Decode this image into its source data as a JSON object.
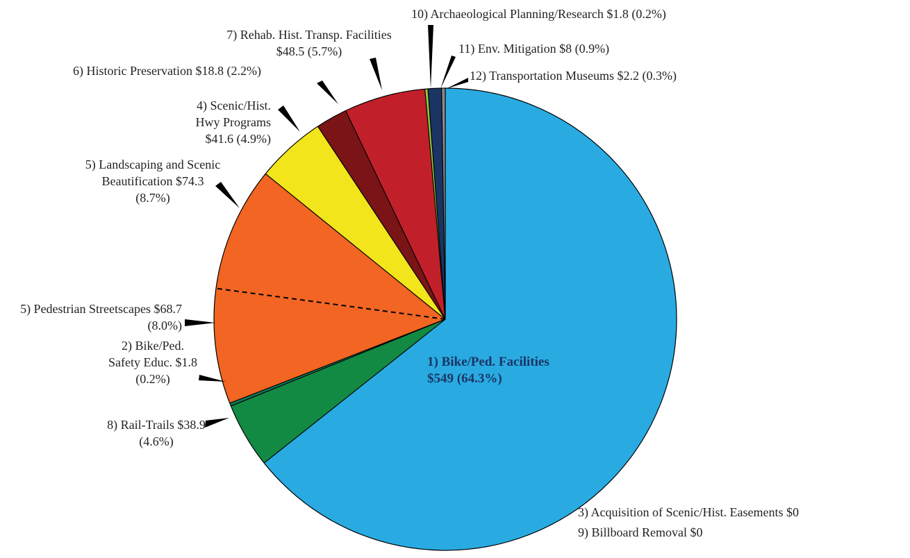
{
  "chart_data": {
    "type": "pie",
    "categories": [
      "1) Bike/Ped. Facilities",
      "8) Rail-Trails",
      "2) Bike/Ped. Safety Educ.",
      "5) Pedestrian Streetscapes",
      "5) Landscaping and Scenic Beautification",
      "4) Scenic/Hist. Hwy Programs",
      "6) Historic Preservation",
      "7) Rehab. Hist. Transp. Facilities",
      "10) Archaeological Planning/Research",
      "11) Env. Mitigation",
      "12) Transportation Museums",
      "3) Acquisition of Scenic/Hist. Easements",
      "9) Billboard Removal"
    ],
    "values": [
      549,
      38.9,
      1.8,
      68.7,
      74.3,
      41.6,
      18.8,
      48.5,
      1.8,
      8,
      2.2,
      0,
      0
    ],
    "value_labels": [
      "$549 (64.3%)",
      "$38.9 (4.6%)",
      "$1.8 (0.2%)",
      "$68.7 (8.0%)",
      "$74.3 (8.7%)",
      "$41.6 (4.9%)",
      "$18.8 (2.2%)",
      "$48.5 (5.7%)",
      "$1.8 (0.2%)",
      "$8 (0.9%)",
      "$2.2 (0.3%)",
      "$0",
      "$0"
    ],
    "colors": [
      "#29abe2",
      "#138a43",
      "#0f7a5a",
      "#f26522",
      "#f26522",
      "#f2e51b",
      "#7a1416",
      "#c1202a",
      "#8dc63f",
      "#1b3464",
      "#8a8a8a",
      "#29abe2",
      "#29abe2"
    ]
  }
}
